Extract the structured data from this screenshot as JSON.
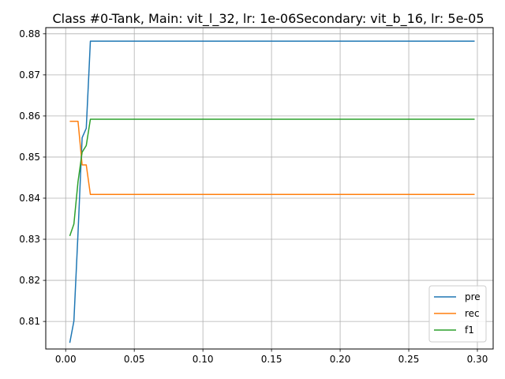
{
  "chart_data": {
    "type": "line",
    "title": "Class #0-Tank, Main: vit_l_32, lr: 1e-06Secondary: vit_b_16, lr: 5e-05",
    "xlabel": "",
    "ylabel": "",
    "xlim": [
      -0.0145,
      0.3115
    ],
    "ylim": [
      0.8033,
      0.8815
    ],
    "xticks": [
      0.0,
      0.05,
      0.1,
      0.15,
      0.2,
      0.25,
      0.3
    ],
    "xtick_labels": [
      "0.00",
      "0.05",
      "0.10",
      "0.15",
      "0.20",
      "0.25",
      "0.30"
    ],
    "yticks": [
      0.81,
      0.82,
      0.83,
      0.84,
      0.85,
      0.86,
      0.87,
      0.88
    ],
    "ytick_labels": [
      "0.81",
      "0.82",
      "0.83",
      "0.84",
      "0.85",
      "0.86",
      "0.87",
      "0.88"
    ],
    "grid": true,
    "legend_position": "lower right",
    "series": [
      {
        "name": "pre",
        "color": "#1f77b4",
        "x": [
          0.003,
          0.006,
          0.009,
          0.012,
          0.015,
          0.017,
          0.018,
          0.02,
          0.05,
          0.1,
          0.15,
          0.2,
          0.25,
          0.298
        ],
        "y": [
          0.8048,
          0.8101,
          0.8315,
          0.8547,
          0.857,
          0.871,
          0.8782,
          0.8782,
          0.8782,
          0.8782,
          0.8782,
          0.8782,
          0.8782,
          0.8782
        ]
      },
      {
        "name": "rec",
        "color": "#ff7f0e",
        "x": [
          0.003,
          0.006,
          0.009,
          0.012,
          0.015,
          0.018,
          0.02,
          0.05,
          0.1,
          0.15,
          0.2,
          0.25,
          0.298
        ],
        "y": [
          0.8587,
          0.8587,
          0.8587,
          0.8481,
          0.8481,
          0.8409,
          0.8409,
          0.8409,
          0.8409,
          0.8409,
          0.8409,
          0.8409,
          0.8409
        ]
      },
      {
        "name": "f1",
        "color": "#2ca02c",
        "x": [
          0.003,
          0.006,
          0.009,
          0.012,
          0.015,
          0.018,
          0.02,
          0.05,
          0.1,
          0.15,
          0.2,
          0.25,
          0.298
        ],
        "y": [
          0.8308,
          0.8337,
          0.844,
          0.8512,
          0.8528,
          0.8592,
          0.8592,
          0.8592,
          0.8592,
          0.8592,
          0.8592,
          0.8592,
          0.8592
        ]
      }
    ]
  }
}
